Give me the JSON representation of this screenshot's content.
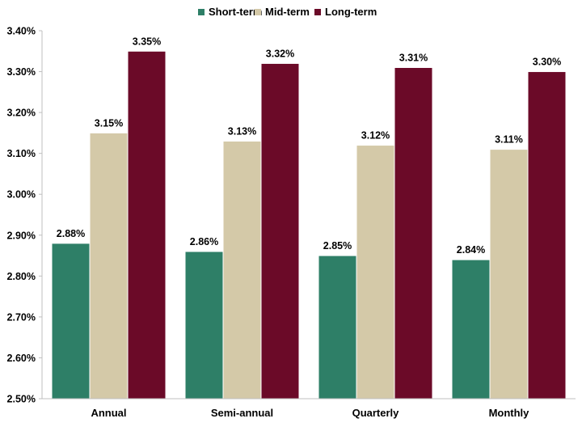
{
  "chart_data": {
    "type": "bar",
    "categories": [
      "Annual",
      "Semi-annual",
      "Quarterly",
      "Monthly"
    ],
    "series": [
      {
        "name": "Short-term",
        "values": [
          2.88,
          2.86,
          2.85,
          2.84
        ],
        "labels": [
          "2.88%",
          "2.86%",
          "2.85%",
          "2.84%"
        ],
        "color": "#2e7f67"
      },
      {
        "name": "Mid-term",
        "values": [
          3.15,
          3.13,
          3.12,
          3.11
        ],
        "labels": [
          "3.15%",
          "3.13%",
          "3.12%",
          "3.11%"
        ],
        "color": "#d4c9a8"
      },
      {
        "name": "Long-term",
        "values": [
          3.35,
          3.32,
          3.31,
          3.3
        ],
        "labels": [
          "3.35%",
          "3.32%",
          "3.31%",
          "3.30%"
        ],
        "color": "#6b0a28"
      }
    ],
    "ylim": [
      2.5,
      3.4
    ],
    "yticks": [
      2.5,
      2.6,
      2.7,
      2.8,
      2.9,
      3.0,
      3.1,
      3.2,
      3.3,
      3.4
    ],
    "ytick_labels": [
      "2.50%",
      "2.60%",
      "2.70%",
      "2.80%",
      "2.90%",
      "3.00%",
      "3.10%",
      "3.20%",
      "3.30%",
      "3.40%"
    ],
    "title": "",
    "xlabel": "",
    "ylabel": "",
    "grid": false,
    "legend_position": "top-center"
  }
}
